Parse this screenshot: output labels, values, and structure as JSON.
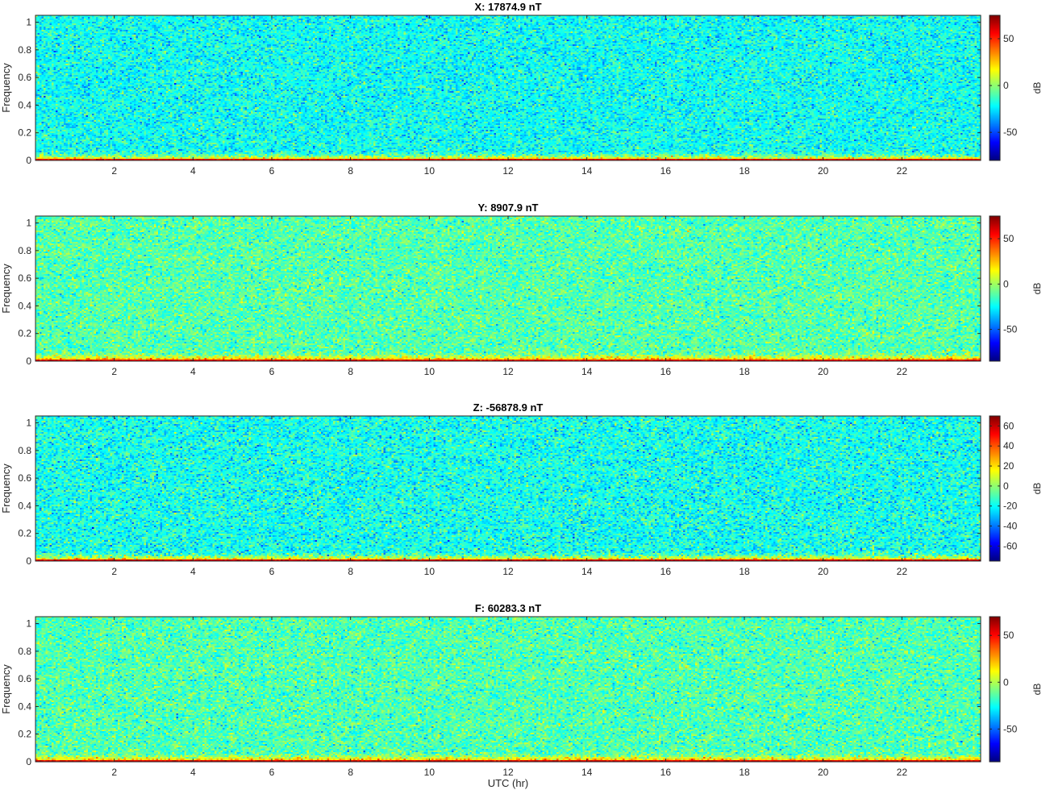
{
  "figure": {
    "xlabel": "UTC (hr)"
  },
  "chart_data": [
    {
      "type": "heatmap",
      "title": "X: 17874.9 nT",
      "xlabel": "",
      "ylabel": "Frequency",
      "colorbar_label": "dB",
      "xlim": [
        0,
        24
      ],
      "ylim": [
        0,
        1.05
      ],
      "clim": [
        -80,
        75
      ],
      "xticks": [
        2,
        4,
        6,
        8,
        10,
        12,
        14,
        16,
        18,
        20,
        22
      ],
      "yticks": [
        0,
        0.2,
        0.4,
        0.6,
        0.8,
        1
      ],
      "cticks": [
        -50,
        0,
        50
      ],
      "noise_floor_db": -20,
      "low_freq_band_db": 35
    },
    {
      "type": "heatmap",
      "title": "Y: 8907.9 nT",
      "xlabel": "",
      "ylabel": "Frequency",
      "colorbar_label": "dB",
      "xlim": [
        0,
        24
      ],
      "ylim": [
        0,
        1.05
      ],
      "clim": [
        -85,
        75
      ],
      "xticks": [
        2,
        4,
        6,
        8,
        10,
        12,
        14,
        16,
        18,
        20,
        22
      ],
      "yticks": [
        0,
        0.2,
        0.4,
        0.6,
        0.8,
        1
      ],
      "cticks": [
        -50,
        0,
        50
      ],
      "noise_floor_db": -12,
      "low_freq_band_db": 35
    },
    {
      "type": "heatmap",
      "title": "Z: -56878.9 nT",
      "xlabel": "",
      "ylabel": "Frequency",
      "colorbar_label": "dB",
      "xlim": [
        0,
        24
      ],
      "ylim": [
        0,
        1.05
      ],
      "clim": [
        -75,
        70
      ],
      "xticks": [
        2,
        4,
        6,
        8,
        10,
        12,
        14,
        16,
        18,
        20,
        22
      ],
      "yticks": [
        0,
        0.2,
        0.4,
        0.6,
        0.8,
        1
      ],
      "cticks": [
        -60,
        -40,
        -20,
        0,
        20,
        40,
        60
      ],
      "noise_floor_db": -18,
      "low_freq_band_db": 35
    },
    {
      "type": "heatmap",
      "title": "F: 60283.3 nT",
      "xlabel": "UTC (hr)",
      "ylabel": "Frequency",
      "colorbar_label": "dB",
      "xlim": [
        0,
        24
      ],
      "ylim": [
        0,
        1.05
      ],
      "clim": [
        -85,
        70
      ],
      "xticks": [
        2,
        4,
        6,
        8,
        10,
        12,
        14,
        16,
        18,
        20,
        22
      ],
      "yticks": [
        0,
        0.2,
        0.4,
        0.6,
        0.8,
        1
      ],
      "cticks": [
        -50,
        0,
        50
      ],
      "noise_floor_db": -15,
      "low_freq_band_db": 35
    }
  ]
}
